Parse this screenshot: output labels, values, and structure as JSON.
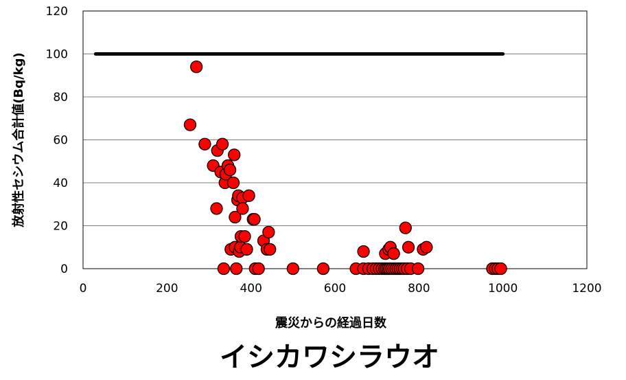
{
  "chart_data": {
    "type": "scatter",
    "title": "イシカワシラウオ",
    "xlabel": "震災からの経過日数",
    "ylabel": "放射性セシウム合計値(Bq/kg)",
    "xlim": [
      0,
      1200
    ],
    "ylim": [
      0,
      120
    ],
    "x_ticks": [
      "0",
      "200",
      "400",
      "600",
      "800",
      "1000",
      "1200"
    ],
    "y_ticks": [
      "0",
      "20",
      "40",
      "60",
      "80",
      "100",
      "120"
    ],
    "grid": "horizontal",
    "legend": "none",
    "reference_line": {
      "y": 100,
      "x_start": 30,
      "x_end": 1000,
      "color": "#000000"
    },
    "series": [
      {
        "marker": "circle",
        "color": "#ff0000",
        "edge_color": "#000000",
        "points": [
          [
            255,
            67
          ],
          [
            270,
            94
          ],
          [
            290,
            58
          ],
          [
            310,
            48
          ],
          [
            318,
            28
          ],
          [
            320,
            55
          ],
          [
            328,
            45
          ],
          [
            332,
            58
          ],
          [
            338,
            40
          ],
          [
            340,
            44
          ],
          [
            345,
            48
          ],
          [
            350,
            46
          ],
          [
            352,
            9
          ],
          [
            358,
            40
          ],
          [
            360,
            53
          ],
          [
            362,
            24
          ],
          [
            362,
            10
          ],
          [
            368,
            32
          ],
          [
            370,
            34
          ],
          [
            372,
            8
          ],
          [
            375,
            10
          ],
          [
            376,
            15
          ],
          [
            380,
            33
          ],
          [
            380,
            28
          ],
          [
            385,
            15
          ],
          [
            390,
            9
          ],
          [
            395,
            34
          ],
          [
            405,
            23
          ],
          [
            408,
            23
          ],
          [
            430,
            13
          ],
          [
            438,
            9
          ],
          [
            442,
            17
          ],
          [
            445,
            9
          ],
          [
            668,
            8
          ],
          [
            720,
            7
          ],
          [
            728,
            9
          ],
          [
            732,
            10
          ],
          [
            740,
            7
          ],
          [
            768,
            19
          ],
          [
            775,
            10
          ],
          [
            810,
            9
          ],
          [
            818,
            10
          ],
          [
            335,
            0
          ],
          [
            365,
            0
          ],
          [
            410,
            0
          ],
          [
            418,
            0
          ],
          [
            500,
            0
          ],
          [
            572,
            0
          ],
          [
            650,
            0
          ],
          [
            668,
            0
          ],
          [
            680,
            0
          ],
          [
            690,
            0
          ],
          [
            698,
            0
          ],
          [
            705,
            0
          ],
          [
            712,
            0
          ],
          [
            718,
            0
          ],
          [
            722,
            0
          ],
          [
            726,
            0
          ],
          [
            730,
            0
          ],
          [
            735,
            0
          ],
          [
            740,
            0
          ],
          [
            745,
            0
          ],
          [
            750,
            0
          ],
          [
            755,
            0
          ],
          [
            760,
            0
          ],
          [
            765,
            0
          ],
          [
            772,
            0
          ],
          [
            780,
            0
          ],
          [
            798,
            0
          ],
          [
            975,
            0
          ],
          [
            982,
            0
          ],
          [
            988,
            0
          ],
          [
            995,
            0
          ]
        ]
      }
    ]
  }
}
